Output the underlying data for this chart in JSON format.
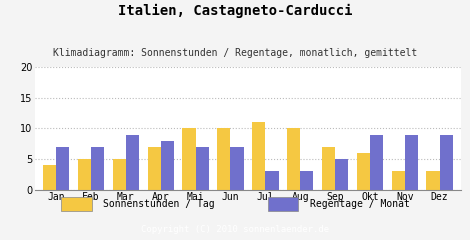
{
  "title": "Italien, Castagneto-Carducci",
  "subtitle": "Klimadiagramm: Sonnenstunden / Regentage, monatlich, gemittelt",
  "months": [
    "Jan",
    "Feb",
    "Mar",
    "Apr",
    "Mai",
    "Jun",
    "Jul",
    "Aug",
    "Sep",
    "Okt",
    "Nov",
    "Dez"
  ],
  "sonnenstunden": [
    4,
    5,
    5,
    7,
    10,
    10,
    11,
    10,
    7,
    6,
    3,
    3
  ],
  "regentage": [
    7,
    7,
    9,
    8,
    7,
    7,
    3,
    3,
    5,
    9,
    9,
    9
  ],
  "bar_color_sun": "#F5C842",
  "bar_color_rain": "#7070CC",
  "background_color": "#F4F4F4",
  "plot_bg_color": "#FFFFFF",
  "footer_bg": "#AAAAAA",
  "footer_text": "Copyright (C) 2010 sonnenlaender.de",
  "footer_text_color": "#FFFFFF",
  "title_fontsize": 10,
  "subtitle_fontsize": 7,
  "legend_label_sun": "Sonnenstunden / Tag",
  "legend_label_rain": "Regentage / Monat",
  "ylim": [
    0,
    20
  ],
  "yticks": [
    0,
    5,
    10,
    15,
    20
  ],
  "grid_color": "#BBBBBB",
  "tick_fontsize": 7,
  "footer_fontsize": 6.5,
  "legend_fontsize": 7
}
